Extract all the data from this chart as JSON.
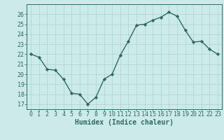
{
  "x": [
    0,
    1,
    2,
    3,
    4,
    5,
    6,
    7,
    8,
    9,
    10,
    11,
    12,
    13,
    14,
    15,
    16,
    17,
    18,
    19,
    20,
    21,
    22,
    23
  ],
  "y": [
    22.0,
    21.7,
    20.5,
    20.4,
    19.5,
    18.1,
    18.0,
    17.0,
    17.7,
    19.5,
    20.0,
    21.9,
    23.3,
    24.9,
    25.0,
    25.4,
    25.7,
    26.2,
    25.8,
    24.4,
    23.2,
    23.3,
    22.5,
    22.0
  ],
  "line_color": "#2e6b5e",
  "bg_color": "#cceaea",
  "grid_color": "#aad4d4",
  "xlabel": "Humidex (Indice chaleur)",
  "ylim": [
    16.5,
    27.0
  ],
  "yticks": [
    17,
    18,
    19,
    20,
    21,
    22,
    23,
    24,
    25,
    26
  ],
  "xticks": [
    0,
    1,
    2,
    3,
    4,
    5,
    6,
    7,
    8,
    9,
    10,
    11,
    12,
    13,
    14,
    15,
    16,
    17,
    18,
    19,
    20,
    21,
    22,
    23
  ],
  "marker": "D",
  "marker_size": 2.2,
  "line_width": 1.0,
  "font_size": 6.0,
  "xlabel_font_size": 7.0
}
